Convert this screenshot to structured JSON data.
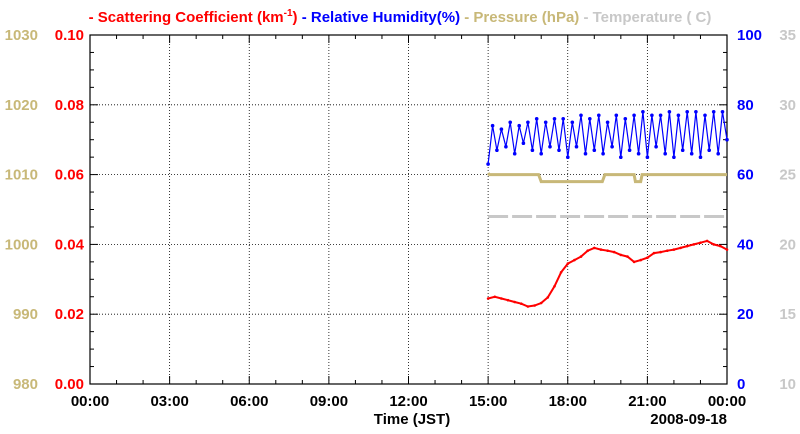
{
  "chart_data": {
    "type": "line",
    "title_parts": [
      {
        "text": "- Scattering Coefficient (km",
        "color": "#ff0000",
        "sup": "-1",
        "tail": ")"
      },
      {
        "text": "- Relative Humidity(%)",
        "color": "#0000ff"
      },
      {
        "text": "- Pressure (hPa)",
        "color": "#c8b878"
      },
      {
        "text": "- Temperature (",
        "color": "#c8c8c8",
        "tail": "C)"
      }
    ],
    "xlabel": "Time (JST)",
    "date_label": "2008-09-18",
    "x_range_hours": [
      0,
      24
    ],
    "x_ticks": [
      "00:00",
      "03:00",
      "06:00",
      "09:00",
      "12:00",
      "15:00",
      "18:00",
      "21:00",
      "00:00"
    ],
    "axes": {
      "pressure": {
        "side": "outer-left",
        "color": "#c8b878",
        "range": [
          980,
          1030
        ],
        "ticks": [
          "980",
          "990",
          "1000",
          "1010",
          "1020",
          "1030"
        ]
      },
      "scattering": {
        "side": "left",
        "color": "#ff0000",
        "range": [
          0,
          0.1
        ],
        "ticks": [
          "0.00",
          "0.02",
          "0.04",
          "0.06",
          "0.08",
          "0.10"
        ]
      },
      "humidity": {
        "side": "right",
        "color": "#0000ff",
        "range": [
          0,
          100
        ],
        "ticks": [
          "0",
          "20",
          "40",
          "60",
          "80",
          "100"
        ]
      },
      "temperature": {
        "side": "outer-right",
        "color": "#c8c8c8",
        "range": [
          10,
          35
        ],
        "ticks": [
          "10",
          "15",
          "20",
          "25",
          "30",
          "35"
        ]
      }
    },
    "series": [
      {
        "name": "Scattering Coefficient",
        "axis": "scattering",
        "color": "#ff0000",
        "x_hours": [
          15.0,
          15.25,
          15.5,
          15.75,
          16.0,
          16.25,
          16.5,
          16.75,
          17.0,
          17.25,
          17.5,
          17.75,
          18.0,
          18.25,
          18.5,
          18.75,
          19.0,
          19.25,
          19.5,
          19.75,
          20.0,
          20.25,
          20.5,
          20.75,
          21.0,
          21.25,
          21.5,
          21.75,
          22.0,
          22.25,
          22.5,
          22.75,
          23.0,
          23.25,
          23.5,
          23.75,
          24.0
        ],
        "values": [
          0.0245,
          0.025,
          0.0245,
          0.024,
          0.0235,
          0.023,
          0.0222,
          0.0225,
          0.0232,
          0.0248,
          0.028,
          0.032,
          0.0345,
          0.0355,
          0.0365,
          0.0382,
          0.039,
          0.0385,
          0.0382,
          0.0378,
          0.037,
          0.0365,
          0.035,
          0.0355,
          0.0362,
          0.0375,
          0.0378,
          0.0382,
          0.0385,
          0.039,
          0.0395,
          0.04,
          0.0405,
          0.041,
          0.04,
          0.0395,
          0.0385
        ]
      },
      {
        "name": "Relative Humidity",
        "axis": "humidity",
        "color": "#0000ff",
        "x_hours": [
          15.0,
          15.17,
          15.33,
          15.5,
          15.67,
          15.83,
          16.0,
          16.17,
          16.33,
          16.5,
          16.67,
          16.83,
          17.0,
          17.17,
          17.33,
          17.5,
          17.67,
          17.83,
          18.0,
          18.17,
          18.33,
          18.5,
          18.67,
          18.83,
          19.0,
          19.17,
          19.33,
          19.5,
          19.67,
          19.83,
          20.0,
          20.17,
          20.33,
          20.5,
          20.67,
          20.83,
          21.0,
          21.17,
          21.33,
          21.5,
          21.67,
          21.83,
          22.0,
          22.17,
          22.33,
          22.5,
          22.67,
          22.83,
          23.0,
          23.17,
          23.33,
          23.5,
          23.67,
          23.83,
          24.0
        ],
        "values": [
          63,
          74,
          67,
          73,
          68,
          75,
          66,
          74,
          69,
          75,
          67,
          76,
          66,
          75,
          68,
          76,
          67,
          76,
          65,
          75,
          68,
          77,
          66,
          76,
          67,
          77,
          66,
          75,
          68,
          77,
          65,
          76,
          67,
          77,
          66,
          78,
          65,
          77,
          68,
          77,
          66,
          78,
          65,
          77,
          67,
          78,
          66,
          78,
          65,
          77,
          67,
          78,
          66,
          78,
          70
        ]
      },
      {
        "name": "Pressure",
        "axis": "pressure",
        "color": "#c8b878",
        "x_hours": [
          15.0,
          15.05,
          16.0,
          16.9,
          17.0,
          18.5,
          18.6,
          19.3,
          19.4,
          20.5,
          20.55,
          20.75,
          20.8,
          21.0,
          22.0,
          23.0,
          24.0
        ],
        "values": [
          1010.2,
          1010.0,
          1010.0,
          1010.0,
          1009.0,
          1009.0,
          1009.0,
          1009.0,
          1010.0,
          1010.0,
          1009.0,
          1009.0,
          1010.0,
          1010.0,
          1010.0,
          1010.0,
          1010.0
        ]
      },
      {
        "name": "Temperature",
        "axis": "temperature",
        "color": "#c8c8c8",
        "x_hours": [
          15.0,
          16.0,
          17.0,
          18.0,
          19.0,
          20.0,
          21.0,
          22.0,
          23.0,
          24.0
        ],
        "values": [
          22.0,
          22.0,
          22.0,
          22.0,
          22.0,
          22.0,
          22.0,
          22.0,
          22.0,
          22.0
        ]
      }
    ]
  }
}
